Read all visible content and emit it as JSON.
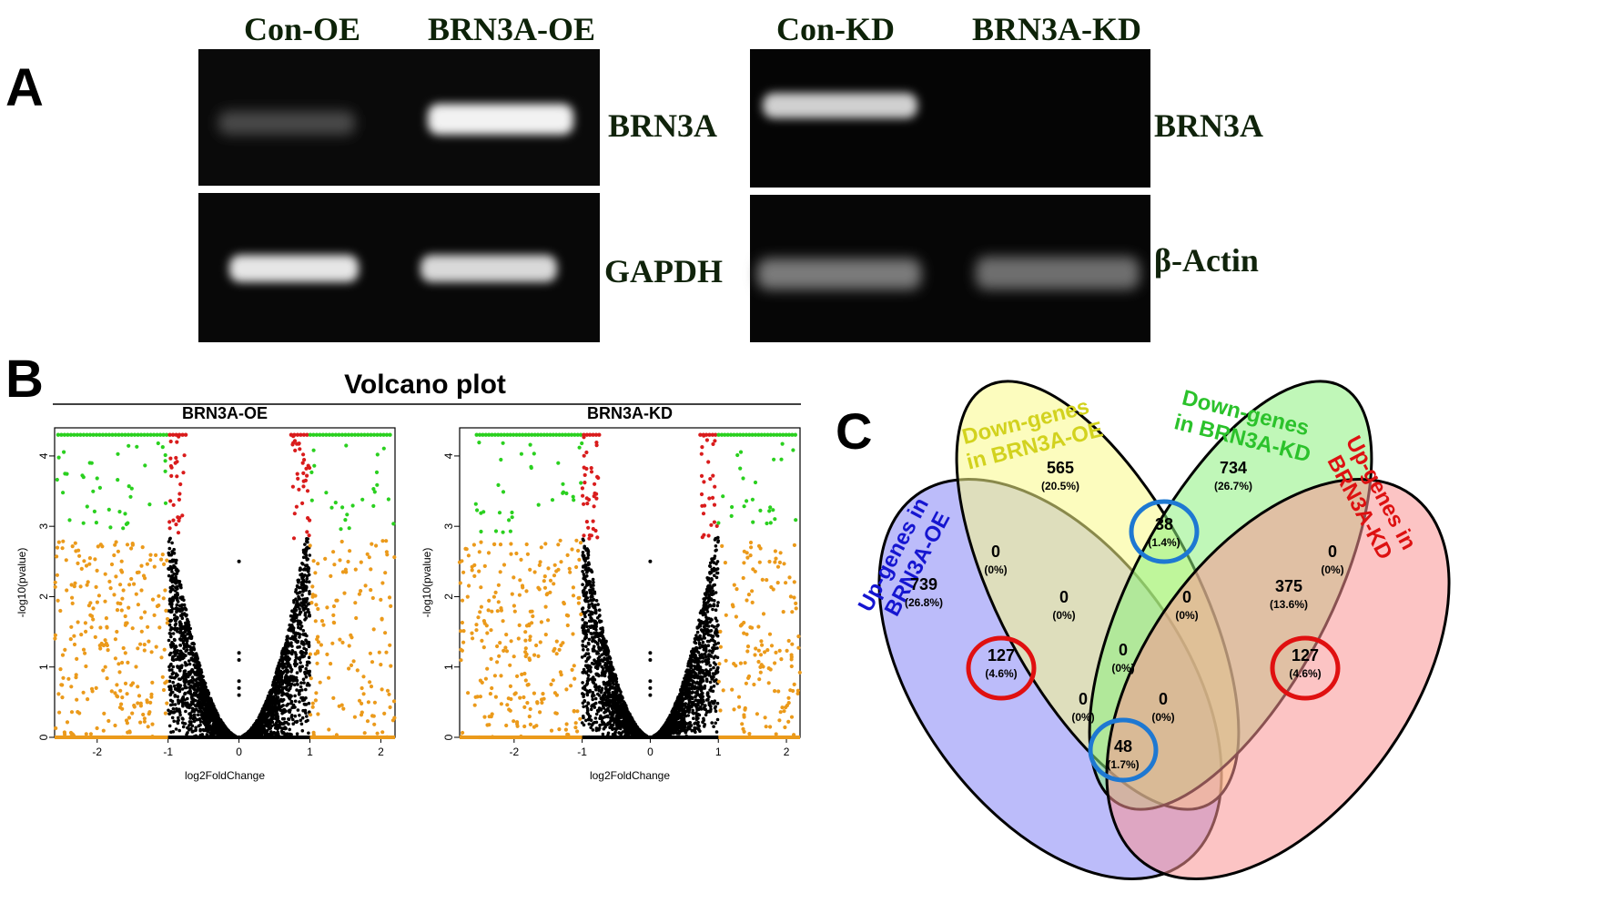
{
  "panel_a": {
    "letter": "A",
    "left_gel": {
      "lanes": [
        "Con-OE",
        "BRN3A-OE"
      ],
      "bands": [
        "BRN3A",
        "GAPDH"
      ]
    },
    "right_gel": {
      "lanes": [
        "Con-KD",
        "BRN3A-KD"
      ],
      "bands": [
        "BRN3A",
        "β-Actin"
      ]
    }
  },
  "panel_b": {
    "letter": "B",
    "title": "Volcano plot",
    "xlabel": "log2FoldChange",
    "ylabel": "-log10(pvalue)",
    "colors": {
      "up_down_sig": "#d91c1c",
      "strong_fc": "#2ad01f",
      "low_sig": "#eb9a1b",
      "ns": "#000000"
    },
    "plots": [
      {
        "title": "BRN3A-OE"
      },
      {
        "title": "BRN3A-KD"
      }
    ]
  },
  "chart_data": [
    {
      "type": "scatter",
      "title": "BRN3A-OE",
      "xlabel": "log2FoldChange",
      "ylabel": "-log10(pvalue)",
      "xlim": [
        -2.6,
        2.2
      ],
      "ylim": [
        0,
        4.4
      ],
      "xticks": [
        "-2",
        "-1",
        "0",
        "1",
        "2"
      ],
      "yticks": [
        "0",
        "1",
        "2",
        "3",
        "4"
      ],
      "thresholds": {
        "log2fc": [
          -1,
          1
        ],
        "pvalue_cap": 4.3
      }
    },
    {
      "type": "scatter",
      "title": "BRN3A-KD",
      "xlabel": "log2FoldChange",
      "ylabel": "-log10(pvalue)",
      "xlim": [
        -2.8,
        2.2
      ],
      "ylim": [
        0,
        4.4
      ],
      "xticks": [
        "-2",
        "-1",
        "0",
        "1",
        "2"
      ],
      "yticks": [
        "0",
        "1",
        "2",
        "3",
        "4"
      ],
      "thresholds": {
        "log2fc": [
          -1,
          1
        ],
        "pvalue_cap": 4.3
      }
    }
  ],
  "panel_c": {
    "letter": "C",
    "sets": [
      {
        "label_lines": [
          "Up-genes in",
          "BRN3A-OE"
        ],
        "color": "#1515d0",
        "fill": "#8585f5"
      },
      {
        "label_lines": [
          "Down-genes",
          "in BRN3A-OE"
        ],
        "color": "#d2d21e",
        "fill": "#fafa88"
      },
      {
        "label_lines": [
          "Down-genes",
          "in BRN3A-KD"
        ],
        "color": "#2bc22b",
        "fill": "#8df07d"
      },
      {
        "label_lines": [
          "Up-genes in",
          "BRN3A-KD"
        ],
        "color": "#dd1111",
        "fill": "#f99393"
      }
    ],
    "regions": [
      {
        "count": "565",
        "pct": "(20.5%)"
      },
      {
        "count": "734",
        "pct": "(26.7%)"
      },
      {
        "count": "0",
        "pct": "(0%)"
      },
      {
        "count": "38",
        "pct": "(1.4%)"
      },
      {
        "count": "0",
        "pct": "(0%)"
      },
      {
        "count": "739",
        "pct": "(26.8%)"
      },
      {
        "count": "0",
        "pct": "(0%)"
      },
      {
        "count": "0",
        "pct": "(0%)"
      },
      {
        "count": "375",
        "pct": "(13.6%)"
      },
      {
        "count": "127",
        "pct": "(4.6%)"
      },
      {
        "count": "0",
        "pct": "(0%)"
      },
      {
        "count": "127",
        "pct": "(4.6%)"
      },
      {
        "count": "0",
        "pct": "(0%)"
      },
      {
        "count": "0",
        "pct": "(0%)"
      },
      {
        "count": "48",
        "pct": "(1.7%)"
      }
    ],
    "highlight_colors": {
      "blue": "#1e78d2",
      "red": "#e01010"
    }
  }
}
